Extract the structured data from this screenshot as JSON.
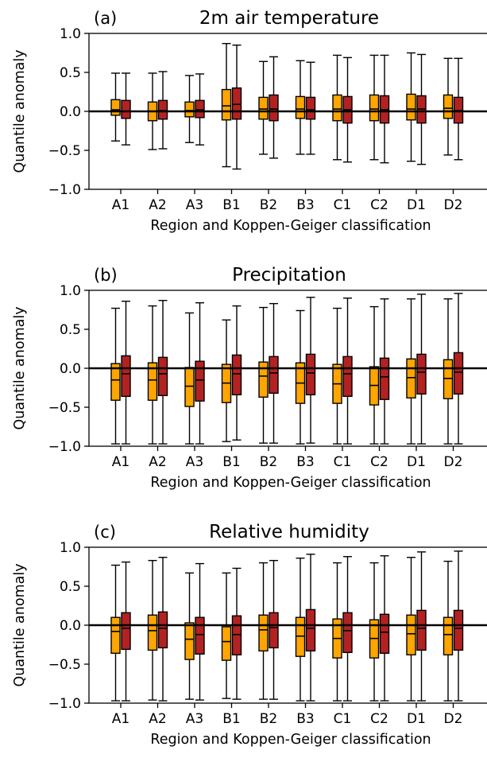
{
  "chart_data": [
    {
      "type": "box",
      "panel_label": "(a)",
      "title": "2m air temperature",
      "xlabel": "Region and Koppen-Geiger classification",
      "ylabel": "Quantile anomaly",
      "ylim": [
        -1.0,
        1.0
      ],
      "yticks": [
        -1.0,
        -0.5,
        0.0,
        0.5,
        1.0
      ],
      "ytick_labels": [
        "−1.0",
        "−0.5",
        "0.0",
        "0.5",
        "1.0"
      ],
      "categories": [
        "A1",
        "A2",
        "A3",
        "B1",
        "B2",
        "B3",
        "C1",
        "C2",
        "D1",
        "D2"
      ],
      "reference_line": 0.0,
      "series": [
        {
          "color": "#FFA500",
          "boxes": [
            {
              "whislo": -0.38,
              "q1": -0.05,
              "med": 0.02,
              "q3": 0.15,
              "whishi": 0.49
            },
            {
              "whislo": -0.49,
              "q1": -0.12,
              "med": 0.0,
              "q3": 0.12,
              "whishi": 0.49
            },
            {
              "whislo": -0.4,
              "q1": -0.07,
              "med": 0.01,
              "q3": 0.12,
              "whishi": 0.46
            },
            {
              "whislo": -0.71,
              "q1": -0.11,
              "med": 0.07,
              "q3": 0.28,
              "whishi": 0.87
            },
            {
              "whislo": -0.55,
              "q1": -0.1,
              "med": 0.03,
              "q3": 0.18,
              "whishi": 0.64
            },
            {
              "whislo": -0.55,
              "q1": -0.09,
              "med": 0.03,
              "q3": 0.19,
              "whishi": 0.65
            },
            {
              "whislo": -0.62,
              "q1": -0.12,
              "med": 0.03,
              "q3": 0.21,
              "whishi": 0.72
            },
            {
              "whislo": -0.62,
              "q1": -0.12,
              "med": 0.03,
              "q3": 0.21,
              "whishi": 0.72
            },
            {
              "whislo": -0.64,
              "q1": -0.11,
              "med": 0.03,
              "q3": 0.22,
              "whishi": 0.75
            },
            {
              "whislo": -0.56,
              "q1": -0.09,
              "med": 0.04,
              "q3": 0.21,
              "whishi": 0.68
            }
          ]
        },
        {
          "color": "#B22222",
          "boxes": [
            {
              "whislo": -0.43,
              "q1": -0.09,
              "med": 0.0,
              "q3": 0.14,
              "whishi": 0.49
            },
            {
              "whislo": -0.48,
              "q1": -0.1,
              "med": 0.01,
              "q3": 0.14,
              "whishi": 0.51
            },
            {
              "whislo": -0.43,
              "q1": -0.08,
              "med": 0.02,
              "q3": 0.14,
              "whishi": 0.48
            },
            {
              "whislo": -0.74,
              "q1": -0.1,
              "med": 0.09,
              "q3": 0.3,
              "whishi": 0.85
            },
            {
              "whislo": -0.6,
              "q1": -0.12,
              "med": 0.03,
              "q3": 0.21,
              "whishi": 0.7
            },
            {
              "whislo": -0.55,
              "q1": -0.1,
              "med": 0.02,
              "q3": 0.18,
              "whishi": 0.63
            },
            {
              "whislo": -0.65,
              "q1": -0.15,
              "med": 0.02,
              "q3": 0.19,
              "whishi": 0.69
            },
            {
              "whislo": -0.66,
              "q1": -0.15,
              "med": 0.02,
              "q3": 0.2,
              "whishi": 0.72
            },
            {
              "whislo": -0.68,
              "q1": -0.15,
              "med": 0.03,
              "q3": 0.2,
              "whishi": 0.73
            },
            {
              "whislo": -0.62,
              "q1": -0.15,
              "med": 0.01,
              "q3": 0.18,
              "whishi": 0.68
            }
          ]
        }
      ]
    },
    {
      "type": "box",
      "panel_label": "(b)",
      "title": "Precipitation",
      "xlabel": "Region and Koppen-Geiger classification",
      "ylabel": "Quantile anomaly",
      "ylim": [
        -1.0,
        1.0
      ],
      "yticks": [
        -1.0,
        -0.5,
        0.0,
        0.5,
        1.0
      ],
      "ytick_labels": [
        "−1.0",
        "−0.5",
        "0.0",
        "0.5",
        "1.0"
      ],
      "categories": [
        "A1",
        "A2",
        "A3",
        "B1",
        "B2",
        "B3",
        "C1",
        "C2",
        "D1",
        "D2"
      ],
      "reference_line": 0.0,
      "series": [
        {
          "color": "#FFA500",
          "boxes": [
            {
              "whislo": -0.97,
              "q1": -0.41,
              "med": -0.15,
              "q3": 0.06,
              "whishi": 0.77
            },
            {
              "whislo": -0.97,
              "q1": -0.41,
              "med": -0.15,
              "q3": 0.07,
              "whishi": 0.8
            },
            {
              "whislo": -0.97,
              "q1": -0.49,
              "med": -0.23,
              "q3": 0.01,
              "whishi": 0.71
            },
            {
              "whislo": -0.94,
              "q1": -0.44,
              "med": -0.19,
              "q3": 0.05,
              "whishi": 0.62
            },
            {
              "whislo": -0.96,
              "q1": -0.37,
              "med": -0.1,
              "q3": 0.08,
              "whishi": 0.78
            },
            {
              "whislo": -0.97,
              "q1": -0.45,
              "med": -0.19,
              "q3": 0.07,
              "whishi": 0.74
            },
            {
              "whislo": -0.97,
              "q1": -0.45,
              "med": -0.2,
              "q3": 0.05,
              "whishi": 0.77
            },
            {
              "whislo": -0.97,
              "q1": -0.47,
              "med": -0.22,
              "q3": 0.02,
              "whishi": 0.79
            },
            {
              "whislo": -0.97,
              "q1": -0.38,
              "med": -0.12,
              "q3": 0.12,
              "whishi": 0.89
            },
            {
              "whislo": -0.97,
              "q1": -0.39,
              "med": -0.13,
              "q3": 0.11,
              "whishi": 0.89
            }
          ]
        },
        {
          "color": "#B22222",
          "boxes": [
            {
              "whislo": -0.97,
              "q1": -0.36,
              "med": -0.07,
              "q3": 0.16,
              "whishi": 0.86
            },
            {
              "whislo": -0.97,
              "q1": -0.35,
              "med": -0.07,
              "q3": 0.14,
              "whishi": 0.87
            },
            {
              "whislo": -0.97,
              "q1": -0.42,
              "med": -0.15,
              "q3": 0.09,
              "whishi": 0.84
            },
            {
              "whislo": -0.92,
              "q1": -0.34,
              "med": -0.07,
              "q3": 0.17,
              "whishi": 0.8
            },
            {
              "whislo": -0.96,
              "q1": -0.32,
              "med": -0.06,
              "q3": 0.15,
              "whishi": 0.83
            },
            {
              "whislo": -0.96,
              "q1": -0.34,
              "med": -0.06,
              "q3": 0.18,
              "whishi": 0.91
            },
            {
              "whislo": -0.97,
              "q1": -0.36,
              "med": -0.07,
              "q3": 0.15,
              "whishi": 0.9
            },
            {
              "whislo": -0.97,
              "q1": -0.4,
              "med": -0.11,
              "q3": 0.13,
              "whishi": 0.89
            },
            {
              "whislo": -0.97,
              "q1": -0.33,
              "med": -0.05,
              "q3": 0.18,
              "whishi": 0.95
            },
            {
              "whislo": -0.97,
              "q1": -0.33,
              "med": -0.05,
              "q3": 0.2,
              "whishi": 0.96
            }
          ]
        }
      ]
    },
    {
      "type": "box",
      "panel_label": "(c)",
      "title": "Relative humidity",
      "xlabel": "Region and Koppen-Geiger classification",
      "ylabel": "Quantile anomaly",
      "ylim": [
        -1.0,
        1.0
      ],
      "yticks": [
        -1.0,
        -0.5,
        0.0,
        0.5,
        1.0
      ],
      "ytick_labels": [
        "−1.0",
        "−0.5",
        "0.0",
        "0.5",
        "1.0"
      ],
      "categories": [
        "A1",
        "A2",
        "A3",
        "B1",
        "B2",
        "B3",
        "C1",
        "C2",
        "D1",
        "D2"
      ],
      "reference_line": 0.0,
      "series": [
        {
          "color": "#FFA500",
          "boxes": [
            {
              "whislo": -0.97,
              "q1": -0.36,
              "med": -0.08,
              "q3": 0.1,
              "whishi": 0.77
            },
            {
              "whislo": -0.96,
              "q1": -0.32,
              "med": -0.07,
              "q3": 0.13,
              "whishi": 0.83
            },
            {
              "whislo": -0.95,
              "q1": -0.44,
              "med": -0.18,
              "q3": 0.03,
              "whishi": 0.67
            },
            {
              "whislo": -0.94,
              "q1": -0.45,
              "med": -0.21,
              "q3": -0.02,
              "whishi": 0.67
            },
            {
              "whislo": -0.95,
              "q1": -0.33,
              "med": -0.06,
              "q3": 0.13,
              "whishi": 0.8
            },
            {
              "whislo": -0.97,
              "q1": -0.4,
              "med": -0.14,
              "q3": 0.1,
              "whishi": 0.86
            },
            {
              "whislo": -0.97,
              "q1": -0.42,
              "med": -0.17,
              "q3": 0.08,
              "whishi": 0.8
            },
            {
              "whislo": -0.97,
              "q1": -0.42,
              "med": -0.17,
              "q3": 0.07,
              "whishi": 0.8
            },
            {
              "whislo": -0.97,
              "q1": -0.38,
              "med": -0.11,
              "q3": 0.13,
              "whishi": 0.87
            },
            {
              "whislo": -0.97,
              "q1": -0.38,
              "med": -0.12,
              "q3": 0.1,
              "whishi": 0.82
            }
          ]
        },
        {
          "color": "#B22222",
          "boxes": [
            {
              "whislo": -0.97,
              "q1": -0.31,
              "med": -0.04,
              "q3": 0.16,
              "whishi": 0.81
            },
            {
              "whislo": -0.97,
              "q1": -0.29,
              "med": -0.04,
              "q3": 0.17,
              "whishi": 0.87
            },
            {
              "whislo": -0.96,
              "q1": -0.37,
              "med": -0.12,
              "q3": 0.1,
              "whishi": 0.79
            },
            {
              "whislo": -0.95,
              "q1": -0.38,
              "med": -0.12,
              "q3": 0.12,
              "whishi": 0.73
            },
            {
              "whislo": -0.95,
              "q1": -0.29,
              "med": -0.03,
              "q3": 0.16,
              "whishi": 0.83
            },
            {
              "whislo": -0.97,
              "q1": -0.33,
              "med": -0.04,
              "q3": 0.2,
              "whishi": 0.91
            },
            {
              "whislo": -0.97,
              "q1": -0.35,
              "med": -0.07,
              "q3": 0.16,
              "whishi": 0.88
            },
            {
              "whislo": -0.97,
              "q1": -0.36,
              "med": -0.09,
              "q3": 0.14,
              "whishi": 0.89
            },
            {
              "whislo": -0.97,
              "q1": -0.32,
              "med": -0.04,
              "q3": 0.19,
              "whishi": 0.94
            },
            {
              "whislo": -0.97,
              "q1": -0.32,
              "med": -0.04,
              "q3": 0.19,
              "whishi": 0.95
            }
          ]
        }
      ]
    }
  ]
}
